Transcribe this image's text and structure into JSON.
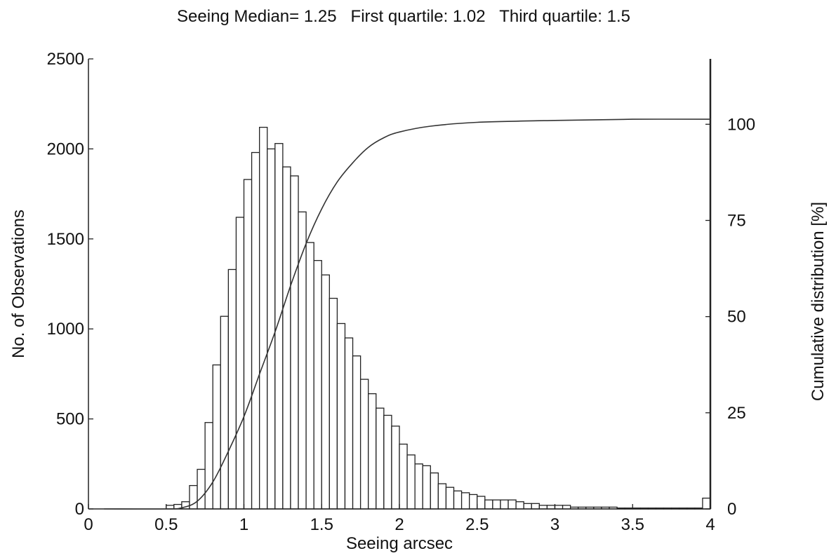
{
  "chart_data": {
    "type": "bar",
    "title": "Seeing Median= 1.25   First quartile: 1.02   Third quartile: 1.5",
    "xlabel": "Seeing arcsec",
    "ylabel": "No. of Observations",
    "y2label": "Cumulative distribution [%]",
    "xlim": [
      0,
      4
    ],
    "ylim": [
      0,
      2500
    ],
    "y2lim": [
      0,
      117
    ],
    "xticks": [
      "0",
      "0.5",
      "1",
      "1.5",
      "2",
      "2.5",
      "3",
      "3.5",
      "4"
    ],
    "yticks": [
      "0",
      "500",
      "1000",
      "1500",
      "2000",
      "2500"
    ],
    "y2ticks": [
      "0",
      "25",
      "50",
      "75",
      "100"
    ],
    "bin_width": 0.05,
    "bin_centers": [
      0.525,
      0.575,
      0.625,
      0.675,
      0.725,
      0.775,
      0.825,
      0.875,
      0.925,
      0.975,
      1.025,
      1.075,
      1.125,
      1.175,
      1.225,
      1.275,
      1.325,
      1.375,
      1.425,
      1.475,
      1.525,
      1.575,
      1.625,
      1.675,
      1.725,
      1.775,
      1.825,
      1.875,
      1.925,
      1.975,
      2.025,
      2.075,
      2.125,
      2.175,
      2.225,
      2.275,
      2.325,
      2.375,
      2.425,
      2.475,
      2.525,
      2.575,
      2.625,
      2.675,
      2.725,
      2.775,
      2.825,
      2.875,
      2.925,
      2.975,
      3.025,
      3.075,
      3.125,
      3.175,
      3.225,
      3.275,
      3.325,
      3.375,
      3.425,
      3.475,
      3.525,
      3.575,
      3.625,
      3.675,
      3.725,
      3.775,
      3.825,
      3.875,
      3.925,
      3.975
    ],
    "counts": [
      20,
      25,
      40,
      130,
      220,
      480,
      800,
      1070,
      1330,
      1620,
      1830,
      1980,
      2120,
      2000,
      2030,
      1900,
      1850,
      1650,
      1480,
      1380,
      1300,
      1170,
      1030,
      950,
      850,
      720,
      640,
      560,
      520,
      460,
      360,
      300,
      250,
      240,
      200,
      140,
      120,
      100,
      90,
      80,
      70,
      50,
      50,
      50,
      50,
      40,
      30,
      30,
      20,
      20,
      20,
      20,
      10,
      10,
      10,
      10,
      10,
      10,
      5,
      5,
      5,
      5,
      5,
      5,
      5,
      5,
      5,
      5,
      5,
      60
    ],
    "cumulative": {
      "x": [
        0.1,
        0.5,
        0.6,
        0.7,
        0.8,
        0.9,
        1.0,
        1.1,
        1.2,
        1.3,
        1.4,
        1.5,
        1.6,
        1.7,
        1.8,
        1.9,
        2.0,
        2.2,
        2.5,
        3.0,
        3.5,
        4.0
      ],
      "y": [
        0,
        0,
        0.3,
        2,
        7,
        15,
        24,
        35,
        46,
        58,
        69,
        78,
        85,
        90,
        94,
        96.5,
        98,
        99.5,
        100.5,
        101,
        101.3,
        101.3
      ]
    }
  }
}
